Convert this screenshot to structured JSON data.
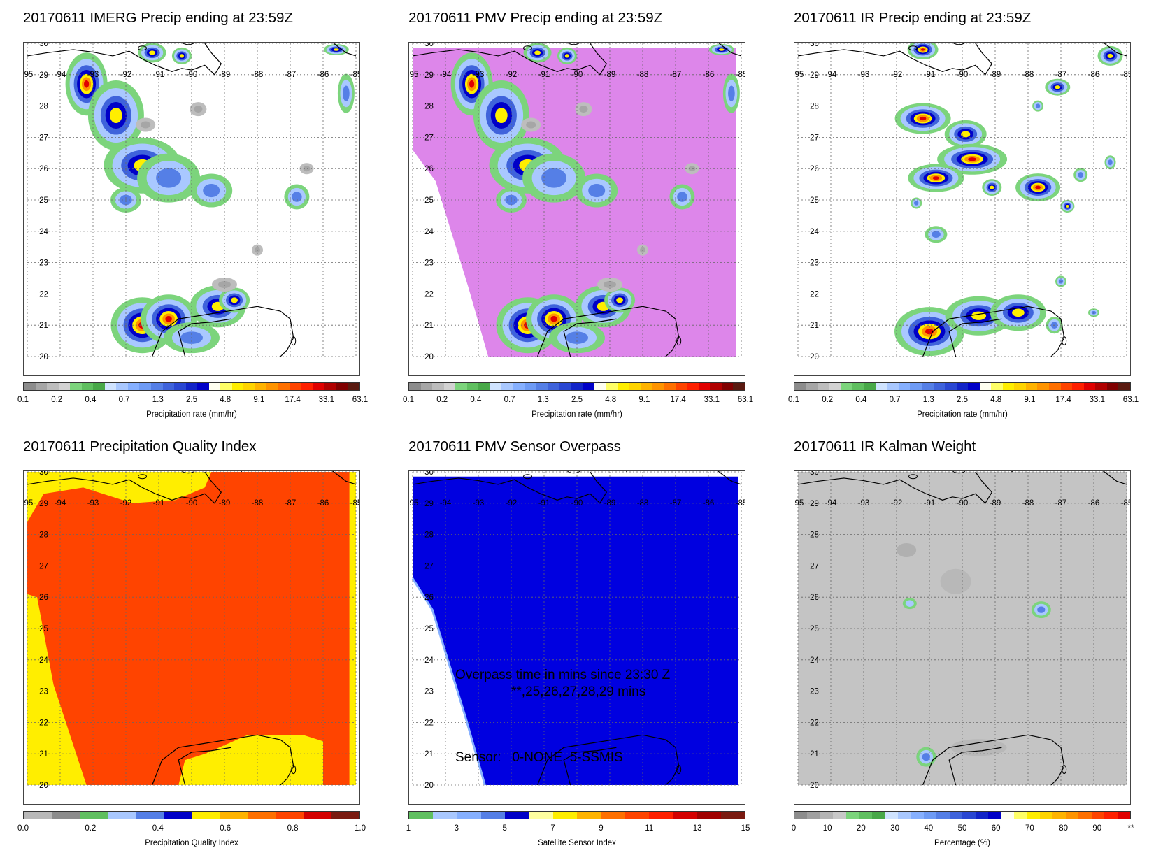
{
  "map": {
    "lon_labels": [
      "-95",
      "-94",
      "-93",
      "-92",
      "-91",
      "-90",
      "-89",
      "-88",
      "-87",
      "-86",
      "-85"
    ],
    "lat_labels": [
      "30",
      "29",
      "28",
      "27",
      "26",
      "25",
      "24",
      "23",
      "22",
      "21",
      "20"
    ]
  },
  "colors": {
    "precip": [
      "#8c8c8c",
      "#a6a6a6",
      "#bdbdbd",
      "#d2d2d2",
      "#7cd47c",
      "#5fbf5f",
      "#48a848",
      "#cfe3ff",
      "#a9c8ff",
      "#86b0ff",
      "#6e9bf5",
      "#557fe6",
      "#3f63db",
      "#2a47d2",
      "#1224c8",
      "#0000c8",
      "#fffff0",
      "#ffff66",
      "#ffee00",
      "#ffd400",
      "#ffb300",
      "#ff9400",
      "#ff7000",
      "#ff4400",
      "#ff2000",
      "#e00000",
      "#b00000",
      "#800000",
      "#5a1a10"
    ],
    "pqi": [
      "#b8b8b8",
      "#8c8c8c",
      "#5fbf5f",
      "#a9c8ff",
      "#557fe6",
      "#0000c8",
      "#ffee00",
      "#ffb300",
      "#ff7000",
      "#ff4400",
      "#d40000",
      "#7a1a10"
    ],
    "sensor": [
      "#5fbf5f",
      "#a9c8ff",
      "#86b0ff",
      "#557fe6",
      "#0000c8",
      "#ffffa0",
      "#ffee00",
      "#ffb300",
      "#ff7000",
      "#ff4400",
      "#ff2000",
      "#d40000",
      "#a00000",
      "#7a1a10"
    ],
    "kalman": [
      "#8c8c8c",
      "#a0a0a0",
      "#b4b4b4",
      "#c8c8c8",
      "#7cd47c",
      "#5fbf5f",
      "#48a848",
      "#cfe3ff",
      "#a9c8ff",
      "#86b0ff",
      "#6e9bf5",
      "#557fe6",
      "#3f63db",
      "#2a47d2",
      "#1224c8",
      "#0000c8",
      "#fffff0",
      "#ffff66",
      "#ffee00",
      "#ffd400",
      "#ffb300",
      "#ff9400",
      "#ff7000",
      "#ff4400",
      "#ff2000",
      "#e00000"
    ],
    "pmv_bg": "#dd86ea",
    "pqi_red": "#ff4400",
    "pqi_yellow": "#ffee00",
    "sensor_blue": "#0000e0",
    "kalman_gray": "#c4c4c4"
  },
  "panels": [
    {
      "title": "20170611 IMERG Precip ending at 23:59Z",
      "unit": "Precipitation rate (mm/hr)",
      "ticks": [
        "0.1",
        "0.2",
        "0.4",
        "0.7",
        "1.3",
        "2.5",
        "4.8",
        "9.1",
        "17.4",
        "33.1",
        "63.1"
      ]
    },
    {
      "title": "20170611 PMV Precip ending at 23:59Z",
      "unit": "Precipitation rate (mm/hr)",
      "ticks": [
        "0.1",
        "0.2",
        "0.4",
        "0.7",
        "1.3",
        "2.5",
        "4.8",
        "9.1",
        "17.4",
        "33.1",
        "63.1"
      ]
    },
    {
      "title": "20170611 IR Precip ending at 23:59Z",
      "unit": "Precipitation rate (mm/hr)",
      "ticks": [
        "0.1",
        "0.2",
        "0.4",
        "0.7",
        "1.3",
        "2.5",
        "4.8",
        "9.1",
        "17.4",
        "33.1",
        "63.1"
      ]
    },
    {
      "title": "20170611 Precipitation Quality Index",
      "unit": "Precipitation Quality Index",
      "ticks": [
        "0.0",
        "0.2",
        "0.4",
        "0.6",
        "0.8",
        "1.0"
      ]
    },
    {
      "title": "20170611 PMV Sensor Overpass",
      "unit": "Satellite Sensor Index",
      "ticks": [
        "1",
        "3",
        "5",
        "7",
        "9",
        "11",
        "13",
        "15"
      ],
      "overpass_line1": "Overpass time in mins since 23:30 Z",
      "overpass_line2": "**,25,26,27,28,29 mins",
      "sensor_line": "Sensor:   0-NONE  5-SSMIS"
    },
    {
      "title": "20170611 IR Kalman Weight",
      "unit": "Percentage (%)",
      "ticks": [
        "0",
        "10",
        "20",
        "30",
        "40",
        "50",
        "60",
        "70",
        "80",
        "90",
        "**"
      ]
    }
  ]
}
